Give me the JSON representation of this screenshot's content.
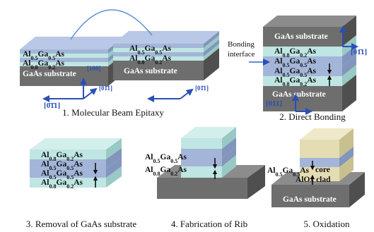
{
  "panels": [
    {
      "caption": "1. Molecular Beam Epitaxy",
      "labels": [
        "Al0.5Ga0.5As",
        "Al0.8Ga0.2As",
        "GaAs substrate",
        "Al0.5Ga0.5As",
        "Al0.8Ga0.2As",
        "GaAs substrate"
      ],
      "axes": [
        "[100]",
        "[0̄1̄1]",
        "[01̄1]",
        "[01̄1]"
      ]
    },
    {
      "caption": "2. Direct Bonding",
      "annotation": "Bonding interface",
      "labels": [
        "GaAs substrate",
        "Al0.8Ga0.2As",
        "Al0.5Ga0.5As",
        "Al0.5Ga0.5As",
        "Al0.8Ga0.2As",
        "GaAs substrate"
      ],
      "axes": [
        "[01̄1]",
        "[011]"
      ]
    },
    {
      "caption": "3. Removal of GaAs substrate",
      "labels": [
        "Al0.8Ga0.2As",
        "Al0.5Ga0.5As",
        "Al0.5Ga0.5As",
        "Al0.8Ga0.2As"
      ]
    },
    {
      "caption": "4. Fabrication of Rib",
      "labels": [
        "Al0.5Ga0.5As",
        "Al0.8Ga0.2As"
      ]
    },
    {
      "caption": "5. Oxidation",
      "labels": [
        "Al0.5Ga0.5As",
        "core",
        "AlOx clad",
        "GaAs substrate"
      ]
    }
  ]
}
